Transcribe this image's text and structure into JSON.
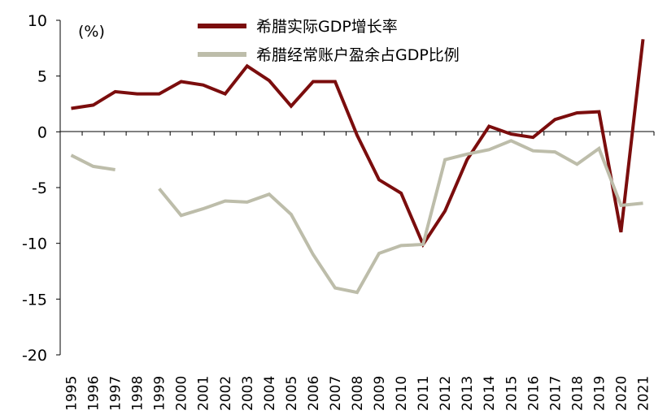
{
  "chart_data": {
    "type": "line",
    "title": "",
    "xlabel": "",
    "ylabel": "",
    "unit_label": "(%)",
    "ylim": [
      -20,
      10
    ],
    "yticks": [
      10,
      5,
      0,
      -5,
      -10,
      -15,
      -20
    ],
    "x": [
      "1995",
      "1996",
      "1997",
      "1998",
      "1999",
      "2000",
      "2001",
      "2002",
      "2003",
      "2004",
      "2005",
      "2006",
      "2007",
      "2008",
      "2009",
      "2010",
      "2011",
      "2012",
      "2013",
      "2014",
      "2015",
      "2016",
      "2017",
      "2018",
      "2019",
      "2020",
      "2021"
    ],
    "legend_position": "top-center",
    "series": [
      {
        "name": "希腊实际GDP增长率",
        "color": "#7B0D0D",
        "values": [
          2.1,
          2.4,
          3.6,
          3.4,
          3.4,
          4.5,
          4.2,
          3.4,
          5.9,
          4.6,
          2.3,
          4.5,
          4.5,
          -0.3,
          -4.3,
          -5.5,
          -10.1,
          -7.1,
          -2.5,
          0.5,
          -0.2,
          -0.5,
          1.1,
          1.7,
          1.8,
          -9.0,
          8.3
        ]
      },
      {
        "name": "希腊经常账户盈余占GDP比例",
        "color": "#BDBDAA",
        "values": [
          -2.1,
          -3.1,
          -3.4,
          null,
          -5.1,
          -7.5,
          -6.9,
          -6.2,
          -6.3,
          -5.6,
          -7.4,
          -11.0,
          -14.0,
          -14.4,
          -10.9,
          -10.2,
          -10.1,
          -2.5,
          -2.0,
          -1.6,
          -0.8,
          -1.7,
          -1.8,
          -2.9,
          -1.5,
          -6.6,
          -6.4
        ]
      }
    ]
  }
}
